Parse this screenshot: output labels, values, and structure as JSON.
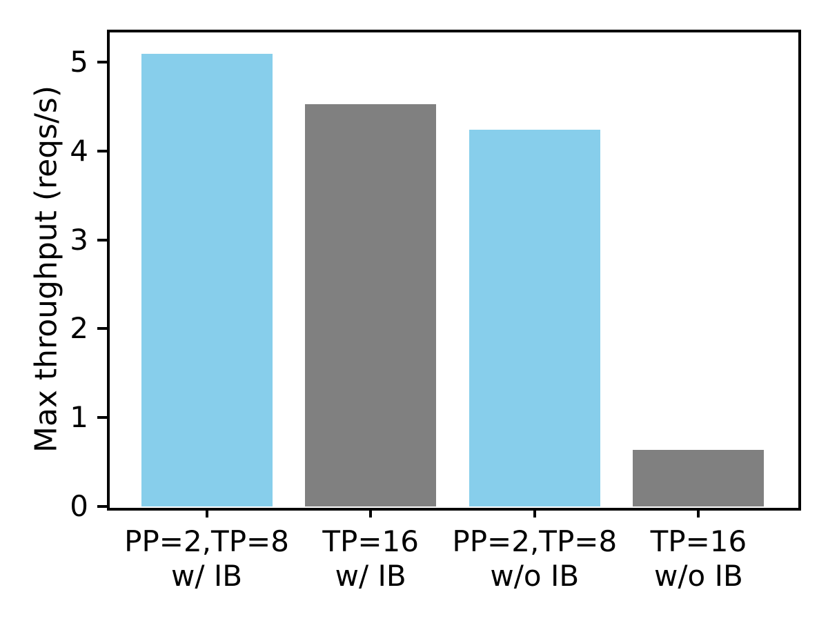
{
  "chart_data": {
    "type": "bar",
    "title": "",
    "xlabel": "",
    "ylabel": "Max throughput (reqs/s)",
    "categories": [
      "PP=2,TP=8\nw/ IB",
      "TP=16\nw/ IB",
      "PP=2,TP=8\nw/o IB",
      "TP=16\nw/o IB"
    ],
    "values": [
      5.09,
      4.53,
      4.24,
      0.64
    ],
    "bar_colors": [
      "#87ceeb",
      "#808080",
      "#87ceeb",
      "#808080"
    ],
    "yticks": [
      0,
      1,
      2,
      3,
      4,
      5
    ],
    "ylim": [
      0,
      5.35
    ],
    "grid": false,
    "legend": null,
    "axis_color": "#000000",
    "background_color": "#ffffff"
  }
}
